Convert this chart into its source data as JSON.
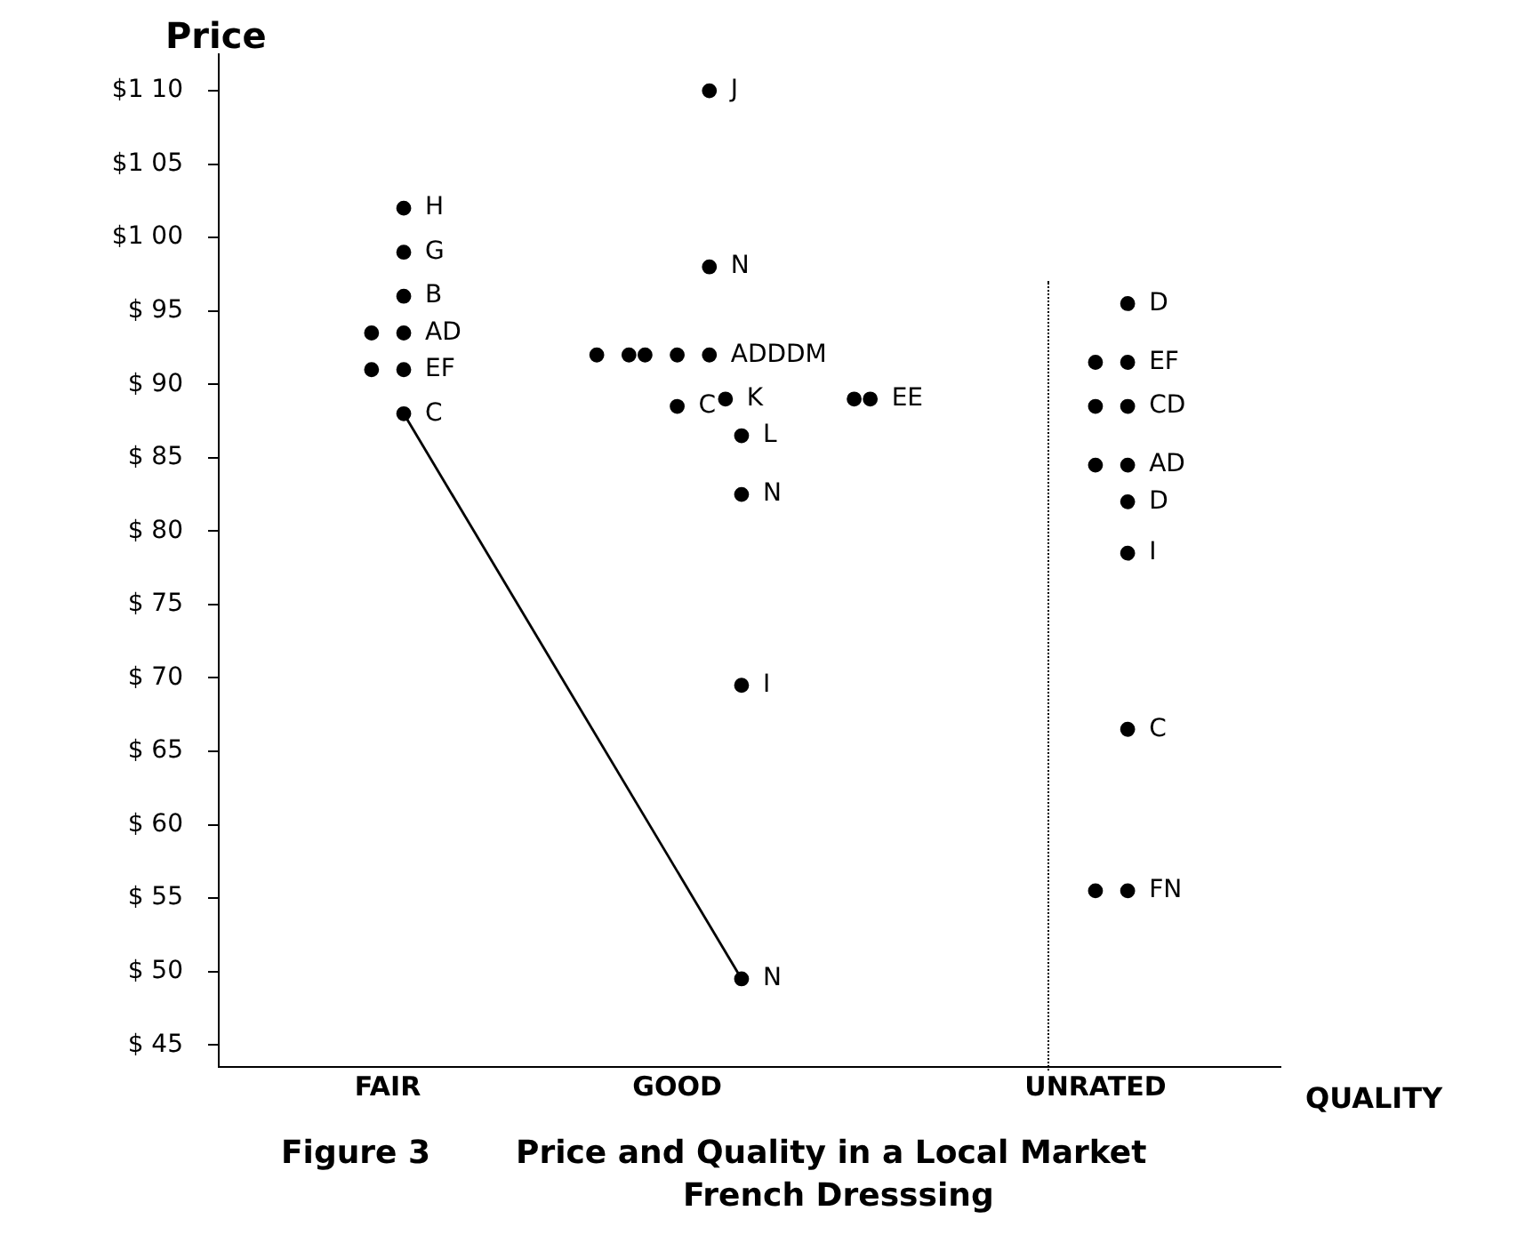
{
  "chart_data": {
    "type": "scatter",
    "title": "Price and Quality in a Local Market",
    "subtitle": "French Dresssing",
    "ylabel": "Price",
    "xlabel": "QUALITY",
    "categories": [
      null,
      null,
      null,
      null,
      null,
      null,
      null,
      null,
      null,
      null,
      "FAIR",
      null,
      null,
      null,
      null,
      null,
      null,
      null,
      null,
      null,
      null,
      null,
      null,
      null,
      null,
      null,
      null,
      null,
      "GOOD",
      null,
      null,
      null,
      null,
      null,
      null,
      null,
      null,
      null,
      null,
      null,
      null,
      null,
      null,
      null,
      null,
      null,
      null,
      null,
      null,
      null,
      null,
      null,
      null,
      null,
      "UNRATED",
      null,
      null,
      null,
      null,
      null,
      null,
      null,
      null,
      null,
      null,
      null
    ],
    "ylim": [
      43.5,
      112.5
    ],
    "yticks": [
      {
        "value": 45,
        "label": "$ 45"
      },
      {
        "value": 50,
        "label": "$ 50"
      },
      {
        "value": 55,
        "label": "$ 55"
      },
      {
        "value": 60,
        "label": "$ 60"
      },
      {
        "value": 65,
        "label": "$ 65"
      },
      {
        "value": 70,
        "label": "$ 70"
      },
      {
        "value": 75,
        "label": "$ 75"
      },
      {
        "value": 80,
        "label": "$ 80"
      },
      {
        "value": 85,
        "label": "$ 85"
      },
      {
        "value": 90,
        "label": "$ 90"
      },
      {
        "value": 95,
        "label": "$ 95"
      },
      {
        "value": 100,
        "label": "$1 00"
      },
      {
        "value": 105,
        "label": "$1 05"
      },
      {
        "value": 110,
        "label": "$1 10"
      }
    ],
    "marker": "circle",
    "series": [
      {
        "color": "#000000",
        "values": [
          null,
          null,
          null,
          null,
          null,
          null,
          null,
          null,
          null,
          93.5,
          null,
          102,
          null,
          null,
          null,
          null,
          null,
          null,
          null,
          null,
          null,
          null,
          null,
          92,
          null,
          92,
          92,
          null,
          92,
          null,
          110,
          89,
          86.5,
          null,
          null,
          null,
          null,
          null,
          null,
          89,
          89,
          null,
          null,
          null,
          null,
          null,
          null,
          null,
          null,
          null,
          null,
          null,
          null,
          null,
          91.5,
          null,
          95.5,
          null,
          null,
          null,
          null,
          null,
          null,
          null,
          null,
          null
        ],
        "value_labels": [
          null,
          null,
          null,
          null,
          null,
          null,
          null,
          null,
          null,
          null,
          null,
          "H",
          null,
          null,
          null,
          null,
          null,
          null,
          null,
          null,
          null,
          null,
          null,
          null,
          null,
          null,
          null,
          null,
          null,
          null,
          "J",
          "K",
          "L",
          null,
          null,
          null,
          null,
          null,
          null,
          null,
          "EE",
          null,
          null,
          null,
          null,
          null,
          null,
          null,
          null,
          null,
          null,
          null,
          null,
          null,
          null,
          null,
          "D",
          null,
          null,
          null,
          null,
          null,
          null,
          null,
          null,
          null
        ]
      },
      {
        "color": "#000000",
        "values": [
          null,
          null,
          null,
          null,
          null,
          null,
          null,
          null,
          null,
          91,
          null,
          99,
          null,
          null,
          null,
          null,
          null,
          null,
          null,
          null,
          null,
          null,
          null,
          null,
          null,
          null,
          null,
          null,
          88.5,
          null,
          98,
          null,
          82.5,
          null,
          null,
          null,
          null,
          null,
          null,
          null,
          null,
          null,
          null,
          null,
          null,
          null,
          null,
          null,
          null,
          null,
          null,
          null,
          null,
          null,
          88.5,
          null,
          91.5,
          null,
          null,
          null,
          null,
          null,
          null,
          null,
          null,
          null
        ],
        "value_labels": [
          null,
          null,
          null,
          null,
          null,
          null,
          null,
          null,
          null,
          null,
          null,
          "G",
          null,
          null,
          null,
          null,
          null,
          null,
          null,
          null,
          null,
          null,
          null,
          null,
          null,
          null,
          null,
          null,
          "C",
          null,
          "N",
          null,
          "N",
          null,
          null,
          null,
          null,
          null,
          null,
          null,
          null,
          null,
          null,
          null,
          null,
          null,
          null,
          null,
          null,
          null,
          null,
          null,
          null,
          null,
          null,
          null,
          "EF",
          null,
          null,
          null,
          null,
          null,
          null,
          null,
          null,
          null
        ]
      },
      {
        "color": "#000000",
        "values": [
          null,
          null,
          null,
          null,
          null,
          null,
          null,
          null,
          null,
          null,
          null,
          96,
          null,
          null,
          null,
          null,
          null,
          null,
          null,
          null,
          null,
          null,
          null,
          null,
          null,
          null,
          null,
          null,
          null,
          null,
          92,
          null,
          69.5,
          null,
          null,
          null,
          null,
          null,
          null,
          null,
          null,
          null,
          null,
          null,
          null,
          null,
          null,
          null,
          null,
          null,
          null,
          null,
          null,
          null,
          84.5,
          null,
          88.5,
          null,
          null,
          null,
          null,
          null,
          null,
          null,
          null,
          null
        ],
        "value_labels": [
          null,
          null,
          null,
          null,
          null,
          null,
          null,
          null,
          null,
          null,
          null,
          "B",
          null,
          null,
          null,
          null,
          null,
          null,
          null,
          null,
          null,
          null,
          null,
          null,
          null,
          null,
          null,
          null,
          null,
          null,
          "ADDDM",
          null,
          "I",
          null,
          null,
          null,
          null,
          null,
          null,
          null,
          null,
          null,
          null,
          null,
          null,
          null,
          null,
          null,
          null,
          null,
          null,
          null,
          null,
          null,
          null,
          null,
          "CD",
          null,
          null,
          null,
          null,
          null,
          null,
          null,
          null,
          null
        ]
      },
      {
        "color": "#000000",
        "values": [
          null,
          null,
          null,
          null,
          null,
          null,
          null,
          null,
          null,
          null,
          null,
          93.5,
          null,
          null,
          null,
          null,
          null,
          null,
          null,
          null,
          null,
          null,
          null,
          null,
          null,
          null,
          null,
          null,
          null,
          null,
          null,
          null,
          49.5,
          null,
          null,
          null,
          null,
          null,
          null,
          null,
          null,
          null,
          null,
          null,
          null,
          null,
          null,
          null,
          null,
          null,
          null,
          null,
          null,
          null,
          55.5,
          null,
          84.5,
          null,
          null,
          null,
          null,
          null,
          null,
          null,
          null,
          null
        ],
        "value_labels": [
          null,
          null,
          null,
          null,
          null,
          null,
          null,
          null,
          null,
          null,
          null,
          "AD",
          null,
          null,
          null,
          null,
          null,
          null,
          null,
          null,
          null,
          null,
          null,
          null,
          null,
          null,
          null,
          null,
          null,
          null,
          null,
          null,
          "N",
          null,
          null,
          null,
          null,
          null,
          null,
          null,
          null,
          null,
          null,
          null,
          null,
          null,
          null,
          null,
          null,
          null,
          null,
          null,
          null,
          null,
          null,
          null,
          "AD",
          null,
          null,
          null,
          null,
          null,
          null,
          null,
          null,
          null
        ]
      },
      {
        "color": "#000000",
        "values": [
          null,
          null,
          null,
          null,
          null,
          null,
          null,
          null,
          null,
          null,
          null,
          91,
          null,
          null,
          null,
          null,
          null,
          null,
          null,
          null,
          null,
          null,
          null,
          null,
          null,
          null,
          null,
          null,
          null,
          null,
          null,
          null,
          null,
          null,
          null,
          null,
          null,
          null,
          null,
          null,
          null,
          null,
          null,
          null,
          null,
          null,
          null,
          null,
          null,
          null,
          null,
          null,
          null,
          null,
          null,
          null,
          82,
          null,
          null,
          null,
          null,
          null,
          null,
          null,
          null,
          null
        ],
        "value_labels": [
          null,
          null,
          null,
          null,
          null,
          null,
          null,
          null,
          null,
          null,
          null,
          "EF",
          null,
          null,
          null,
          null,
          null,
          null,
          null,
          null,
          null,
          null,
          null,
          null,
          null,
          null,
          null,
          null,
          null,
          null,
          null,
          null,
          null,
          null,
          null,
          null,
          null,
          null,
          null,
          null,
          null,
          null,
          null,
          null,
          null,
          null,
          null,
          null,
          null,
          null,
          null,
          null,
          null,
          null,
          null,
          null,
          "D",
          null,
          null,
          null,
          null,
          null,
          null,
          null,
          null,
          null
        ]
      },
      {
        "color": "#000000",
        "values": [
          null,
          null,
          null,
          null,
          null,
          null,
          null,
          null,
          null,
          null,
          null,
          88,
          null,
          null,
          null,
          null,
          null,
          null,
          null,
          null,
          null,
          null,
          null,
          null,
          null,
          null,
          null,
          null,
          null,
          null,
          null,
          null,
          null,
          null,
          null,
          null,
          null,
          null,
          null,
          null,
          null,
          null,
          null,
          null,
          null,
          null,
          null,
          null,
          null,
          null,
          null,
          null,
          null,
          null,
          null,
          null,
          78.5,
          null,
          null,
          null,
          null,
          null,
          null,
          null,
          null,
          null
        ],
        "value_labels": [
          null,
          null,
          null,
          null,
          null,
          null,
          null,
          null,
          null,
          null,
          null,
          "C",
          null,
          null,
          null,
          null,
          null,
          null,
          null,
          null,
          null,
          null,
          null,
          null,
          null,
          null,
          null,
          null,
          null,
          null,
          null,
          null,
          null,
          null,
          null,
          null,
          null,
          null,
          null,
          null,
          null,
          null,
          null,
          null,
          null,
          null,
          null,
          null,
          null,
          null,
          null,
          null,
          null,
          null,
          null,
          null,
          "I",
          null,
          null,
          null,
          null,
          null,
          null,
          null,
          null,
          null
        ]
      },
      {
        "color": "#000000",
        "values": [
          null,
          null,
          null,
          null,
          null,
          null,
          null,
          null,
          null,
          null,
          null,
          null,
          null,
          null,
          null,
          null,
          null,
          null,
          null,
          null,
          null,
          null,
          null,
          null,
          null,
          null,
          null,
          null,
          null,
          null,
          null,
          null,
          null,
          null,
          null,
          null,
          null,
          null,
          null,
          null,
          null,
          null,
          null,
          null,
          null,
          null,
          null,
          null,
          null,
          null,
          null,
          null,
          null,
          null,
          null,
          null,
          66.5,
          null,
          null,
          null,
          null,
          null,
          null,
          null,
          null,
          null
        ],
        "value_labels": [
          null,
          null,
          null,
          null,
          null,
          null,
          null,
          null,
          null,
          null,
          null,
          null,
          null,
          null,
          null,
          null,
          null,
          null,
          null,
          null,
          null,
          null,
          null,
          null,
          null,
          null,
          null,
          null,
          null,
          null,
          null,
          null,
          null,
          null,
          null,
          null,
          null,
          null,
          null,
          null,
          null,
          null,
          null,
          null,
          null,
          null,
          null,
          null,
          null,
          null,
          null,
          null,
          null,
          null,
          null,
          null,
          "C",
          null,
          null,
          null,
          null,
          null,
          null,
          null,
          null,
          null
        ]
      },
      {
        "color": "#000000",
        "values": [
          null,
          null,
          null,
          null,
          null,
          null,
          null,
          null,
          null,
          null,
          null,
          null,
          null,
          null,
          null,
          null,
          null,
          null,
          null,
          null,
          null,
          null,
          null,
          null,
          null,
          null,
          null,
          null,
          null,
          null,
          null,
          null,
          null,
          null,
          null,
          null,
          null,
          null,
          null,
          null,
          null,
          null,
          null,
          null,
          null,
          null,
          null,
          null,
          null,
          null,
          null,
          null,
          null,
          null,
          null,
          null,
          55.5,
          null,
          null,
          null,
          null,
          null,
          null,
          null,
          null,
          null
        ],
        "value_labels": [
          null,
          null,
          null,
          null,
          null,
          null,
          null,
          null,
          null,
          null,
          null,
          null,
          null,
          null,
          null,
          null,
          null,
          null,
          null,
          null,
          null,
          null,
          null,
          null,
          null,
          null,
          null,
          null,
          null,
          null,
          null,
          null,
          null,
          null,
          null,
          null,
          null,
          null,
          null,
          null,
          null,
          null,
          null,
          null,
          null,
          null,
          null,
          null,
          null,
          null,
          null,
          null,
          null,
          null,
          null,
          null,
          "FN",
          null,
          null,
          null,
          null,
          null,
          null,
          null,
          null,
          null
        ]
      },
      {
        "type": "line",
        "color": "#000000",
        "marker": "none",
        "values": [
          null,
          null,
          null,
          null,
          null,
          null,
          null,
          null,
          null,
          null,
          null,
          88,
          null,
          null,
          null,
          null,
          null,
          null,
          null,
          null,
          null,
          null,
          null,
          null,
          null,
          null,
          null,
          null,
          null,
          null,
          null,
          null,
          49.5,
          null,
          null,
          null,
          null,
          null,
          null,
          null,
          null,
          null,
          null,
          null,
          null,
          null,
          null,
          null,
          null,
          null,
          null,
          null,
          null,
          null,
          null,
          null,
          null,
          null,
          null,
          null,
          null,
          null,
          null,
          null,
          null,
          null
        ]
      }
    ],
    "annotations": [
      "Figure 3"
    ]
  }
}
